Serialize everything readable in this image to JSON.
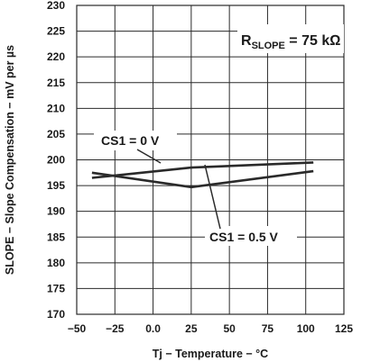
{
  "chart_data": {
    "type": "line",
    "xlabel": "Tj − Temperature − °C",
    "ylabel": "SLOPE − Slope Compensation − mV per µs",
    "xlim": [
      -50,
      125
    ],
    "ylim": [
      170,
      230
    ],
    "x_ticks": [
      "−50",
      "−25",
      "0.0",
      "25",
      "50",
      "75",
      "100",
      "125"
    ],
    "y_ticks": [
      "230",
      "225",
      "220",
      "215",
      "210",
      "205",
      "200",
      "195",
      "190",
      "185",
      "180",
      "175",
      "170"
    ],
    "grid": true,
    "annotation": {
      "prefix": "R",
      "subscript": "SLOPE",
      "suffix": " = 75 kΩ",
      "placement": "top-right"
    },
    "series": [
      {
        "name": "CS1 = 0 V",
        "x": [
          -40,
          25,
          105
        ],
        "y": [
          196.5,
          198.5,
          199.5
        ]
      },
      {
        "name": "CS1 = 0.5 V",
        "x": [
          -40,
          25,
          105
        ],
        "y": [
          197.5,
          194.7,
          197.8
        ]
      }
    ]
  },
  "colors": {
    "line": "#2a2a2a",
    "grid": "#2a2a2a",
    "text": "#1a1a1a",
    "background": "#ffffff"
  }
}
